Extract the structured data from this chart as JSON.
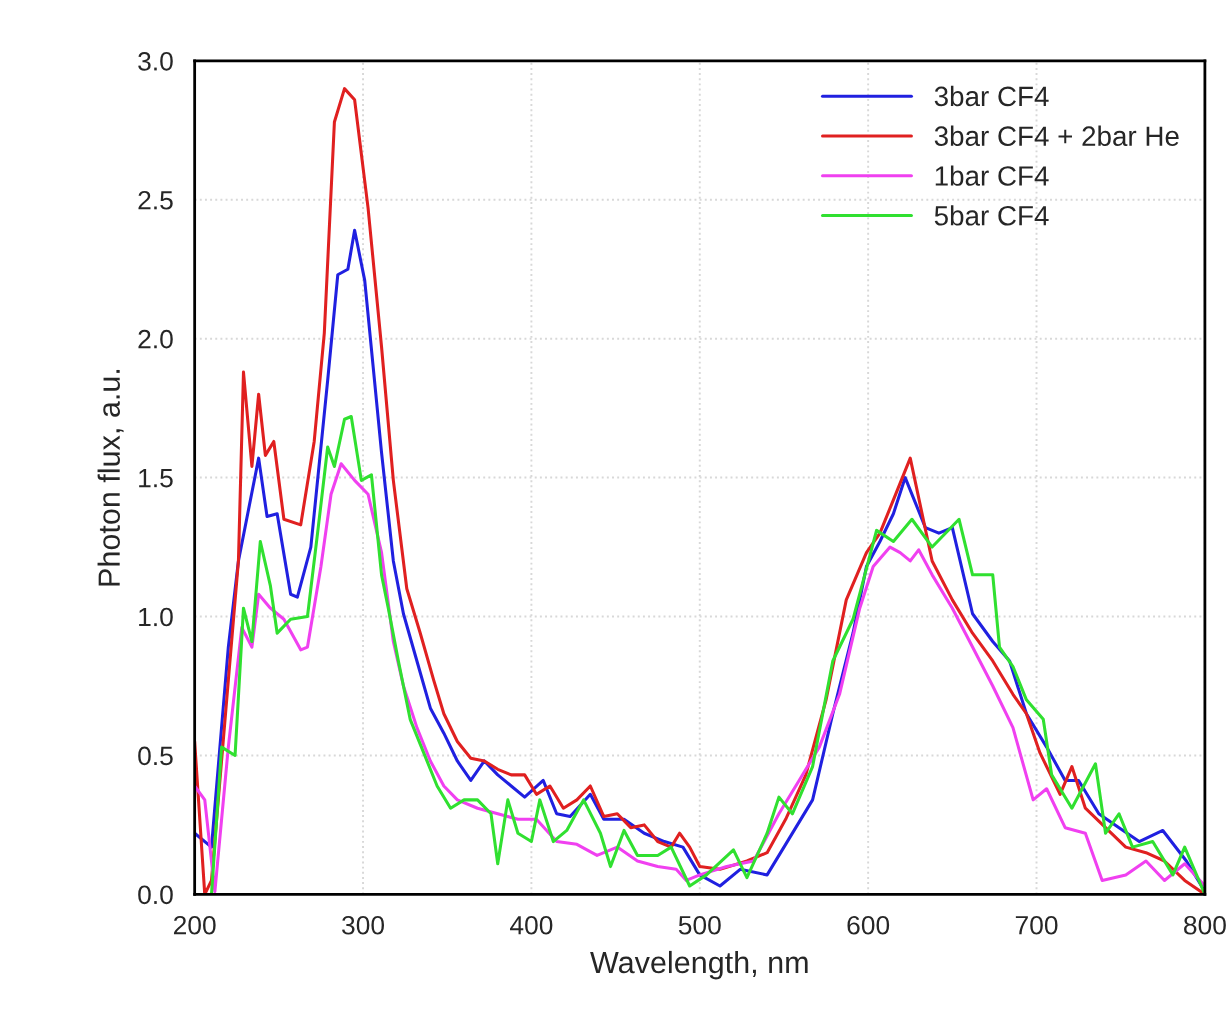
{
  "chart_data": {
    "type": "line",
    "xlabel": "Wavelength, nm",
    "ylabel": "Photon flux, a.u.",
    "xlim": [
      200,
      800
    ],
    "xticks": [
      200,
      300,
      400,
      500,
      600,
      700,
      800
    ],
    "ylim": [
      0,
      3.0
    ],
    "yticks": [
      {
        "value": 0,
        "label": "0.0"
      },
      {
        "value": 0.5,
        "label": "0.5"
      },
      {
        "value": 1.0,
        "label": "1.0"
      },
      {
        "value": 1.5,
        "label": "1.5"
      },
      {
        "value": 2.0,
        "label": "2.0"
      },
      {
        "value": 2.5,
        "label": "2.5"
      },
      {
        "value": 3.0,
        "label": "3.0"
      }
    ],
    "grid": true,
    "legend": "top right",
    "marker": "none",
    "line_style": "solid",
    "series": [
      {
        "name": "3bar CF4",
        "color": "#2020e0",
        "x": [
          200,
          210,
          220,
          226,
          238,
          243,
          249,
          257,
          261,
          269,
          279,
          285,
          291,
          295,
          301,
          311,
          318,
          324,
          332,
          340,
          348,
          356,
          364,
          372,
          380,
          388,
          396,
          407,
          415,
          423,
          435,
          443,
          455,
          467,
          479,
          490,
          500,
          512,
          524,
          540,
          551,
          567,
          579,
          591,
          599,
          607,
          615,
          622,
          634,
          642,
          650,
          662,
          674,
          684,
          694,
          706,
          717,
          725,
          737,
          749,
          761,
          775,
          789,
          800
        ],
        "values": [
          0.22,
          0.17,
          0.89,
          1.2,
          1.57,
          1.36,
          1.37,
          1.08,
          1.07,
          1.25,
          1.85,
          2.23,
          2.25,
          2.39,
          2.21,
          1.59,
          1.2,
          1.01,
          0.84,
          0.67,
          0.58,
          0.48,
          0.41,
          0.48,
          0.43,
          0.39,
          0.35,
          0.41,
          0.29,
          0.28,
          0.36,
          0.27,
          0.27,
          0.22,
          0.19,
          0.17,
          0.07,
          0.03,
          0.09,
          0.07,
          0.18,
          0.34,
          0.65,
          0.94,
          1.18,
          1.27,
          1.37,
          1.5,
          1.32,
          1.3,
          1.32,
          1.01,
          0.91,
          0.84,
          0.65,
          0.53,
          0.41,
          0.41,
          0.29,
          0.24,
          0.19,
          0.23,
          0.12,
          0.01
        ]
      },
      {
        "name": "3bar CF4 + 2bar He",
        "color": "#e02020",
        "x": [
          200,
          206,
          210,
          220,
          226,
          229,
          234,
          238,
          242,
          247,
          253,
          263,
          271,
          277,
          283,
          289,
          295,
          303,
          311,
          318,
          326,
          334,
          342,
          348,
          356,
          364,
          372,
          380,
          388,
          396,
          403,
          411,
          419,
          427,
          435,
          443,
          451,
          459,
          467,
          475,
          483,
          488,
          494,
          500,
          512,
          528,
          540,
          551,
          563,
          575,
          587,
          599,
          607,
          615,
          625,
          638,
          650,
          662,
          674,
          686,
          694,
          702,
          714,
          721,
          729,
          741,
          753,
          765,
          776,
          788,
          800
        ],
        "values": [
          0.55,
          0.0,
          0.05,
          0.77,
          1.2,
          1.88,
          1.54,
          1.8,
          1.58,
          1.63,
          1.35,
          1.33,
          1.63,
          2.02,
          2.78,
          2.9,
          2.86,
          2.47,
          1.97,
          1.49,
          1.1,
          0.94,
          0.77,
          0.65,
          0.55,
          0.49,
          0.48,
          0.45,
          0.43,
          0.43,
          0.36,
          0.39,
          0.31,
          0.34,
          0.39,
          0.28,
          0.29,
          0.24,
          0.25,
          0.19,
          0.17,
          0.22,
          0.17,
          0.1,
          0.09,
          0.12,
          0.15,
          0.27,
          0.43,
          0.7,
          1.06,
          1.23,
          1.3,
          1.42,
          1.57,
          1.2,
          1.06,
          0.94,
          0.84,
          0.72,
          0.65,
          0.51,
          0.36,
          0.46,
          0.31,
          0.24,
          0.17,
          0.15,
          0.12,
          0.05,
          0.0
        ]
      },
      {
        "name": "1bar CF4",
        "color": "#f040f0",
        "x": [
          200,
          206,
          212,
          220,
          228,
          234,
          238,
          245,
          253,
          263,
          267,
          275,
          281,
          287,
          295,
          303,
          311,
          318,
          324,
          332,
          340,
          348,
          356,
          368,
          380,
          392,
          403,
          415,
          427,
          439,
          451,
          463,
          475,
          486,
          492,
          500,
          516,
          532,
          547,
          559,
          571,
          583,
          595,
          603,
          613,
          619,
          625,
          630,
          638,
          650,
          662,
          674,
          686,
          698,
          706,
          717,
          729,
          739,
          753,
          765,
          776,
          788,
          800
        ],
        "values": [
          0.39,
          0.34,
          0.01,
          0.53,
          0.96,
          0.89,
          1.08,
          1.03,
          0.99,
          0.88,
          0.89,
          1.18,
          1.44,
          1.55,
          1.49,
          1.44,
          1.23,
          0.91,
          0.75,
          0.6,
          0.48,
          0.39,
          0.34,
          0.31,
          0.29,
          0.27,
          0.27,
          0.19,
          0.18,
          0.14,
          0.17,
          0.12,
          0.1,
          0.09,
          0.05,
          0.07,
          0.1,
          0.12,
          0.29,
          0.41,
          0.53,
          0.72,
          1.03,
          1.18,
          1.25,
          1.23,
          1.2,
          1.24,
          1.15,
          1.03,
          0.89,
          0.75,
          0.6,
          0.34,
          0.38,
          0.24,
          0.22,
          0.05,
          0.07,
          0.12,
          0.05,
          0.11,
          0.03
        ]
      },
      {
        "name": "5bar CF4",
        "color": "#30e030",
        "x": [
          210,
          216,
          224,
          229,
          234,
          239,
          245,
          249,
          257,
          267,
          273,
          279,
          283,
          289,
          293,
          299,
          305,
          311,
          315,
          321,
          328,
          336,
          344,
          352,
          360,
          368,
          376,
          380,
          386,
          392,
          400,
          405,
          413,
          421,
          431,
          441,
          447,
          455,
          463,
          475,
          483,
          494,
          504,
          520,
          528,
          540,
          547,
          555,
          567,
          579,
          591,
          605,
          615,
          626,
          638,
          654,
          662,
          674,
          678,
          686,
          694,
          704,
          709,
          721,
          735,
          741,
          749,
          757,
          769,
          781,
          788,
          800
        ],
        "values": [
          0.0,
          0.53,
          0.5,
          1.03,
          0.91,
          1.27,
          1.11,
          0.94,
          0.99,
          1.0,
          1.3,
          1.61,
          1.54,
          1.71,
          1.72,
          1.49,
          1.51,
          1.15,
          1.03,
          0.84,
          0.63,
          0.51,
          0.39,
          0.31,
          0.34,
          0.34,
          0.29,
          0.11,
          0.34,
          0.22,
          0.19,
          0.34,
          0.19,
          0.23,
          0.34,
          0.22,
          0.1,
          0.23,
          0.14,
          0.14,
          0.17,
          0.03,
          0.07,
          0.16,
          0.06,
          0.22,
          0.35,
          0.29,
          0.46,
          0.84,
          0.99,
          1.31,
          1.27,
          1.35,
          1.25,
          1.35,
          1.15,
          1.15,
          0.89,
          0.82,
          0.7,
          0.63,
          0.43,
          0.31,
          0.47,
          0.22,
          0.29,
          0.17,
          0.19,
          0.07,
          0.17,
          0.0
        ]
      }
    ]
  }
}
